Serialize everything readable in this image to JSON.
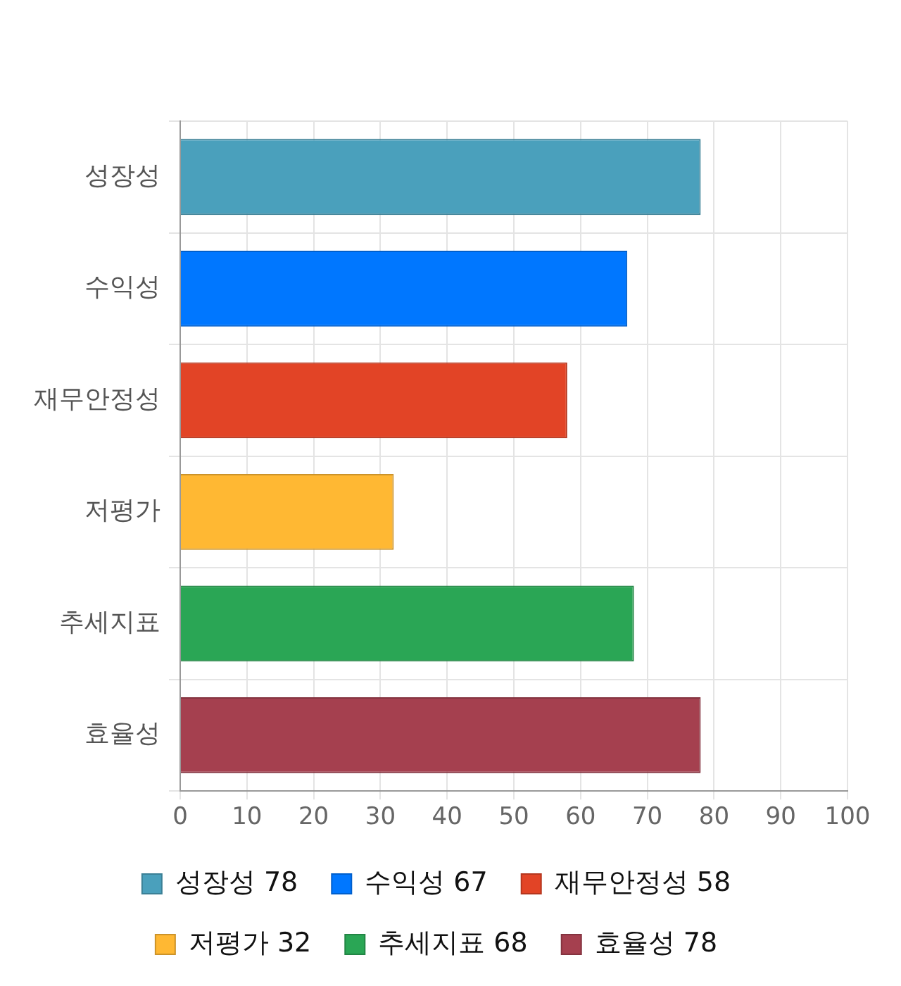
{
  "chart_data": {
    "type": "bar",
    "orientation": "horizontal",
    "categories": [
      "성장성",
      "수익성",
      "재무안정성",
      "저평가",
      "추세지표",
      "효율성"
    ],
    "series": [
      {
        "name": "성장성 78",
        "color": "#4aa0bc",
        "values": [
          78,
          null,
          null,
          null,
          null,
          null
        ]
      },
      {
        "name": "수익성 67",
        "color": "#0077ff",
        "values": [
          null,
          67,
          null,
          null,
          null,
          null
        ]
      },
      {
        "name": "재무안정성 58",
        "color": "#e24426",
        "values": [
          null,
          null,
          58,
          null,
          null,
          null
        ]
      },
      {
        "name": "저평가 32",
        "color": "#ffb833",
        "values": [
          null,
          null,
          null,
          32,
          null,
          null
        ]
      },
      {
        "name": "추세지표 68",
        "color": "#2aa655",
        "values": [
          null,
          null,
          null,
          null,
          68,
          null
        ]
      },
      {
        "name": "효율성 78",
        "color": "#a5404f",
        "values": [
          null,
          null,
          null,
          null,
          null,
          78
        ]
      }
    ],
    "xlim": [
      0,
      100
    ],
    "xticks": [
      0,
      10,
      20,
      30,
      40,
      50,
      60,
      70,
      80,
      90,
      100
    ],
    "grid": true,
    "legend": "bottom"
  }
}
